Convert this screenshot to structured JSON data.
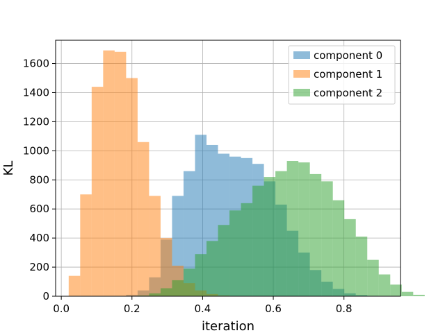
{
  "chart_data": {
    "type": "bar",
    "xlabel": "iteration",
    "ylabel": "KL",
    "xlim": [
      -0.016,
      0.96
    ],
    "ylim": [
      0,
      1760
    ],
    "xticks": [
      0.0,
      0.2,
      0.4,
      0.6,
      0.8
    ],
    "xtick_labels": [
      "0.0",
      "0.2",
      "0.4",
      "0.6",
      "0.8"
    ],
    "yticks": [
      0,
      200,
      400,
      600,
      800,
      1000,
      1200,
      1400,
      1600
    ],
    "ytick_labels": [
      "0",
      "200",
      "400",
      "600",
      "800",
      "1000",
      "1200",
      "1400",
      "1600"
    ],
    "grid": true,
    "legend_position": "top-right",
    "histogram": true,
    "alpha": 0.5,
    "series": [
      {
        "name": "component 0",
        "color": "#1f77b4",
        "bin_start": 0.021,
        "bin_width": 0.0325,
        "counts": [
          0,
          0,
          0,
          0,
          2,
          10,
          40,
          130,
          390,
          690,
          860,
          1110,
          1040,
          980,
          960,
          950,
          910,
          790,
          630,
          450,
          300,
          180,
          100,
          50,
          20,
          8,
          3,
          0
        ]
      },
      {
        "name": "component 1",
        "color": "#ff7f0e",
        "bin_start": 0.021,
        "bin_width": 0.0325,
        "counts": [
          140,
          700,
          1440,
          1690,
          1680,
          1500,
          1060,
          690,
          400,
          210,
          90,
          40,
          15,
          5,
          2,
          0,
          0,
          0,
          0,
          0,
          0,
          0,
          0,
          0,
          0,
          0,
          0,
          0
        ]
      },
      {
        "name": "component 2",
        "color": "#2ca02c",
        "bin_start": 0.021,
        "bin_width": 0.0325,
        "counts": [
          0,
          0,
          0,
          0,
          0,
          0,
          5,
          20,
          55,
          110,
          190,
          290,
          380,
          490,
          590,
          640,
          760,
          820,
          860,
          930,
          920,
          840,
          790,
          660,
          530,
          410,
          250,
          150,
          80,
          30,
          10
        ]
      }
    ]
  }
}
